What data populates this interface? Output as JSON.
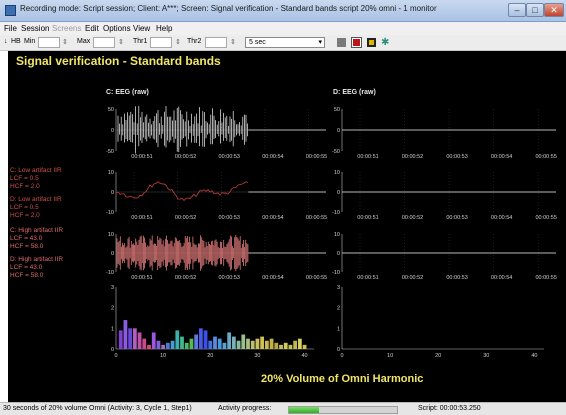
{
  "window": {
    "title": "Recording mode: Script session; Client: A***; Screen: Signal verification - Standard bands script 20% omni - 1 monitor"
  },
  "menu": {
    "items": [
      "File",
      "Session",
      "Screens",
      "Edit",
      "Options",
      "View",
      "Help"
    ],
    "disabled": [
      "Screens"
    ]
  },
  "toolbar": {
    "hb_label": "HB",
    "min_label": "Min",
    "max_label": "Max",
    "thr1_label": "Thr1",
    "thr2_label": "Thr2",
    "time_select": "5 sec",
    "colors": [
      "#7a7a7a",
      "#c0141a",
      "#d8b800",
      "#2f8f7f"
    ]
  },
  "screen": {
    "heading": "Signal verification - Standard bands",
    "footer": "20% Volume of Omni Harmonic",
    "left_title": "C: EEG (raw)",
    "right_title": "D: EEG (raw)",
    "side_labels": {
      "c_low": [
        "C: Low artifact IIR",
        "LCF = 0.5",
        "HCF = 2.0"
      ],
      "d_low": [
        "D: Low artifact IIR",
        "LCF = 0.5",
        "HCF = 2.0"
      ],
      "c_high": [
        "C: High artifact IIR",
        "LCF = 43.0",
        "HCF = 58.0"
      ],
      "d_high": [
        "D: High artifact IIR",
        "LCF = 43.0",
        "HCF = 58.0"
      ]
    },
    "time_ticks": [
      "00:00:51",
      "00:00:52",
      "00:00:53",
      "00:00:54",
      "00:00:55"
    ],
    "raw_yticks": [
      "50",
      "0",
      "-50"
    ],
    "filt_yticks": [
      "10",
      "0",
      "-10"
    ],
    "spectrum_yticks": [
      "3",
      "2",
      "1",
      "0"
    ],
    "spectrum_xticks": [
      "0",
      "10",
      "20",
      "30",
      "40"
    ]
  },
  "chart_data": [
    {
      "type": "bar",
      "title": "",
      "xlabel": "",
      "ylabel": "",
      "x": [
        1,
        2,
        3,
        4,
        5,
        6,
        7,
        8,
        9,
        10,
        11,
        12,
        13,
        14,
        15,
        16,
        17,
        18,
        19,
        20,
        21,
        22,
        23,
        24,
        25,
        26,
        27,
        28,
        29,
        30,
        31,
        32,
        33,
        34,
        35,
        36,
        37,
        38,
        39,
        40
      ],
      "values": [
        0.9,
        1.4,
        1.0,
        1.0,
        0.8,
        0.5,
        0.2,
        0.8,
        0.4,
        0.2,
        0.3,
        0.4,
        0.9,
        0.6,
        0.3,
        0.5,
        0.7,
        1.0,
        0.9,
        0.4,
        0.6,
        0.5,
        0.3,
        0.8,
        0.6,
        0.4,
        0.7,
        0.5,
        0.4,
        0.5,
        0.6,
        0.4,
        0.5,
        0.3,
        0.2,
        0.3,
        0.2,
        0.4,
        0.5,
        0.2
      ],
      "colors": [
        "#8040d0",
        "#8a5ce0",
        "#6a48d8",
        "#b060c0",
        "#c050a8",
        "#c84a8a",
        "#d05078",
        "#9a5ae0",
        "#8060d8",
        "#a070c0",
        "#4a7ac8",
        "#4a9ad0",
        "#3ab0b0",
        "#40b890",
        "#4ab870",
        "#5ab850",
        "#5a7ae0",
        "#4a5ae8",
        "#3a50e8",
        "#4470e0",
        "#5a8ae0",
        "#4a9ad8",
        "#5aa0d0",
        "#6aa8c8",
        "#7ab0b8",
        "#8ab8a0",
        "#9ac090",
        "#a8c080",
        "#b8c070",
        "#c8c060",
        "#d0c058",
        "#c8b850",
        "#c0b048",
        "#b8a840",
        "#c8c050",
        "#d0c860",
        "#c8c058",
        "#c0b850",
        "#d8d060",
        "#d0c050"
      ],
      "xlim": [
        0,
        42
      ],
      "ylim": [
        0,
        3
      ]
    },
    {
      "type": "bar",
      "title": "",
      "xlabel": "",
      "ylabel": "",
      "x": [],
      "values": [],
      "xlim": [
        0,
        42
      ],
      "ylim": [
        0,
        3
      ]
    }
  ],
  "status": {
    "left": "30 seconds of 20% volume Omni (Activity: 3, Cycle 1, Step1)",
    "activity_label": "Activity progress:",
    "progress": 0.28,
    "script_time": "Script: 00:00:53.250"
  }
}
